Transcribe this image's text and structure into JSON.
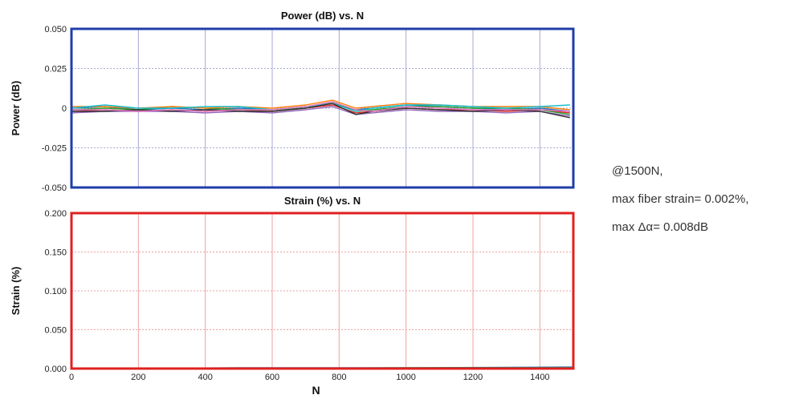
{
  "annotation": {
    "line1": "@1500N,",
    "line2": "max fiber strain= 0.002%,",
    "line3": "max Δα= 0.008dB"
  },
  "colors": {
    "power_frame": "#1f3ea8",
    "strain_frame": "#e02020",
    "power_grid": "#a8a8d8",
    "strain_grid": "#f0a0a0"
  },
  "chart_data": [
    {
      "type": "line",
      "title": "Power (dB) vs. N",
      "xlabel": "",
      "ylabel": "Power (dB)",
      "xlim": [
        0,
        1500
      ],
      "ylim": [
        -0.05,
        0.05
      ],
      "yticks": [
        "0.050",
        "0.025",
        "0",
        "-0.025",
        "-0.050"
      ],
      "ytick_values": [
        0.05,
        0.025,
        0,
        -0.025,
        -0.05
      ],
      "xgrid": [
        200,
        400,
        600,
        800,
        1000,
        1200,
        1400
      ],
      "grid": true,
      "series": [
        {
          "color": "#d62728",
          "x": [
            0,
            100,
            200,
            300,
            400,
            500,
            600,
            700,
            780,
            850,
            900,
            1000,
            1100,
            1200,
            1300,
            1400,
            1490
          ],
          "y": [
            -0.002,
            -0.001,
            -0.002,
            -0.001,
            -0.002,
            -0.001,
            -0.002,
            0.0,
            0.002,
            -0.003,
            -0.002,
            0.0,
            -0.001,
            -0.001,
            -0.002,
            -0.001,
            -0.003
          ]
        },
        {
          "color": "#1f77b4",
          "x": [
            0,
            100,
            200,
            300,
            400,
            500,
            600,
            700,
            780,
            850,
            900,
            1000,
            1100,
            1200,
            1300,
            1400,
            1490
          ],
          "y": [
            0.0,
            0.001,
            -0.001,
            0.0,
            -0.001,
            0.0,
            -0.001,
            0.001,
            0.003,
            -0.001,
            0.0,
            0.002,
            0.001,
            0.0,
            -0.001,
            0.0,
            -0.002
          ]
        },
        {
          "color": "#2ca02c",
          "x": [
            0,
            100,
            200,
            300,
            400,
            500,
            600,
            700,
            780,
            850,
            900,
            1000,
            1100,
            1200,
            1300,
            1400,
            1490
          ],
          "y": [
            -0.001,
            0.0,
            -0.001,
            0.001,
            0.0,
            -0.001,
            -0.001,
            0.0,
            0.004,
            -0.002,
            -0.001,
            0.001,
            0.001,
            0.0,
            0.0,
            -0.001,
            -0.004
          ]
        },
        {
          "color": "#9467bd",
          "x": [
            0,
            100,
            200,
            300,
            400,
            500,
            600,
            700,
            780,
            850,
            900,
            1000,
            1100,
            1200,
            1300,
            1400,
            1490
          ],
          "y": [
            -0.003,
            -0.002,
            -0.002,
            -0.002,
            -0.003,
            -0.002,
            -0.003,
            -0.001,
            0.001,
            -0.004,
            -0.003,
            -0.001,
            -0.002,
            -0.002,
            -0.003,
            -0.002,
            -0.005
          ]
        },
        {
          "color": "#ff7f0e",
          "x": [
            0,
            100,
            200,
            300,
            400,
            500,
            600,
            700,
            780,
            850,
            900,
            1000,
            1100,
            1200,
            1300,
            1400,
            1490
          ],
          "y": [
            0.001,
            0.001,
            0.0,
            0.001,
            0.0,
            0.001,
            0.0,
            0.002,
            0.005,
            0.0,
            0.001,
            0.003,
            0.002,
            0.001,
            0.001,
            0.001,
            -0.001
          ]
        },
        {
          "color": "#17becf",
          "x": [
            0,
            100,
            200,
            300,
            400,
            500,
            600,
            700,
            780,
            850,
            900,
            1000,
            1100,
            1200,
            1300,
            1400,
            1490
          ],
          "y": [
            0.0,
            0.002,
            0.0,
            0.0,
            0.001,
            0.001,
            -0.001,
            0.001,
            0.003,
            -0.002,
            0.0,
            0.002,
            0.002,
            0.001,
            0.0,
            0.001,
            0.002
          ]
        },
        {
          "color": "#333333",
          "x": [
            0,
            100,
            200,
            300,
            400,
            500,
            600,
            700,
            780,
            850,
            900,
            1000,
            1100,
            1200,
            1300,
            1400,
            1490
          ],
          "y": [
            -0.002,
            -0.002,
            -0.001,
            -0.002,
            -0.001,
            -0.002,
            -0.002,
            0.0,
            0.003,
            -0.004,
            -0.002,
            0.0,
            -0.001,
            -0.002,
            -0.001,
            -0.002,
            -0.006
          ]
        },
        {
          "color": "#e377c2",
          "x": [
            0,
            100,
            200,
            300,
            400,
            500,
            600,
            700,
            780,
            850,
            900,
            1000,
            1100,
            1200,
            1300,
            1400,
            1490
          ],
          "y": [
            -0.001,
            -0.001,
            -0.002,
            -0.001,
            -0.002,
            -0.001,
            -0.001,
            0.001,
            0.004,
            -0.001,
            -0.002,
            0.001,
            0.0,
            -0.001,
            -0.001,
            -0.001,
            -0.002
          ]
        }
      ]
    },
    {
      "type": "line",
      "title": "Strain (%) vs. N",
      "xlabel": "N",
      "ylabel": "Strain (%)",
      "xlim": [
        0,
        1500
      ],
      "ylim": [
        0,
        0.2
      ],
      "yticks": [
        "0.200",
        "0.150",
        "0.100",
        "0.050",
        "0.000"
      ],
      "ytick_values": [
        0.2,
        0.15,
        0.1,
        0.05,
        0.0
      ],
      "xticks": [
        "0",
        "200",
        "400",
        "600",
        "800",
        "1000",
        "1200",
        "1400"
      ],
      "xtick_values": [
        0,
        200,
        400,
        600,
        800,
        1000,
        1200,
        1400
      ],
      "xgrid": [
        200,
        400,
        600,
        800,
        1000,
        1200,
        1400
      ],
      "grid": true,
      "series": [
        {
          "color": "#1f77b4",
          "x": [
            0,
            500,
            1000,
            1500
          ],
          "y": [
            0.0,
            0.001,
            0.001,
            0.002
          ]
        },
        {
          "color": "#2ca02c",
          "x": [
            0,
            500,
            1000,
            1500
          ],
          "y": [
            0.0,
            0.0,
            0.001,
            0.001
          ]
        }
      ]
    }
  ]
}
